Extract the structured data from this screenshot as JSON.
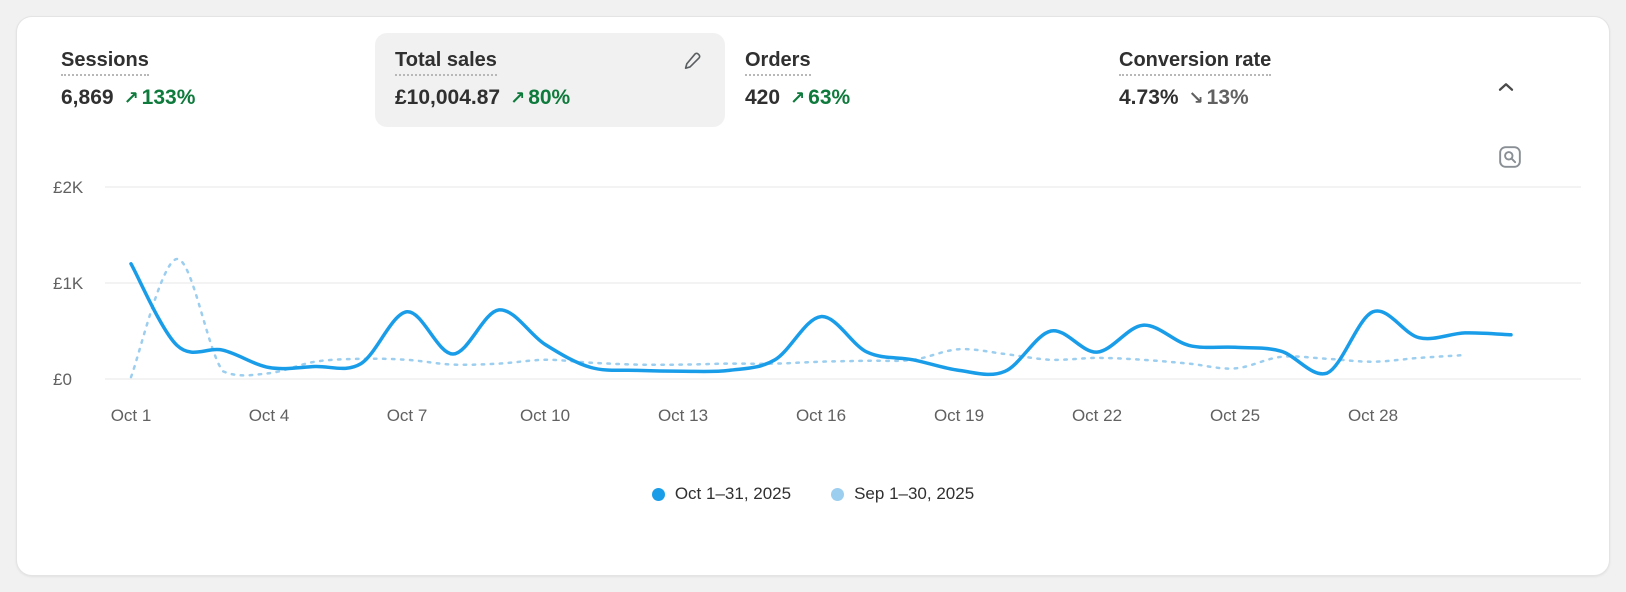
{
  "card": {
    "metrics": [
      {
        "id": "sessions",
        "label": "Sessions",
        "value": "6,869",
        "arrow": "↗",
        "delta": "133%",
        "delta_direction": "up",
        "delta_color": "green",
        "selected": false
      },
      {
        "id": "total-sales",
        "label": "Total sales",
        "value": "£10,004.87",
        "arrow": "↗",
        "delta": "80%",
        "delta_direction": "up",
        "delta_color": "green",
        "selected": true
      },
      {
        "id": "orders",
        "label": "Orders",
        "value": "420",
        "arrow": "↗",
        "delta": "63%",
        "delta_direction": "up",
        "delta_color": "green",
        "selected": false
      },
      {
        "id": "conversion-rate",
        "label": "Conversion rate",
        "value": "4.73%",
        "arrow": "↘",
        "delta": "13%",
        "delta_direction": "down",
        "delta_color": "gray",
        "selected": false
      }
    ],
    "icons": {
      "collapse": "chevron-up",
      "edit": "pencil",
      "inspect": "magnify-chart"
    }
  },
  "colors": {
    "primary_line": "#1a9de9",
    "comparison_line": "#9cceef",
    "positive_delta": "#0e7a3c",
    "neutral_delta": "#616161",
    "text_primary": "#303030",
    "axis_text": "#616161",
    "selected_tile_bg": "#f1f1f1",
    "card_bg": "#ffffff",
    "page_bg": "#f1f1f1"
  },
  "chart_data": {
    "type": "line",
    "title": "Total sales",
    "xlabel": "",
    "ylabel": "",
    "currency": "£",
    "ylim": [
      0,
      2000
    ],
    "grid": true,
    "legend_position": "bottom",
    "yticks": [
      {
        "value": 0,
        "label": "£0"
      },
      {
        "value": 1000,
        "label": "£1K"
      },
      {
        "value": 2000,
        "label": "£2K"
      }
    ],
    "xticks": [
      {
        "day": 1,
        "label": "Oct 1"
      },
      {
        "day": 4,
        "label": "Oct 4"
      },
      {
        "day": 7,
        "label": "Oct 7"
      },
      {
        "day": 10,
        "label": "Oct 10"
      },
      {
        "day": 13,
        "label": "Oct 13"
      },
      {
        "day": 16,
        "label": "Oct 16"
      },
      {
        "day": 19,
        "label": "Oct 19"
      },
      {
        "day": 22,
        "label": "Oct 22"
      },
      {
        "day": 25,
        "label": "Oct 25"
      },
      {
        "day": 28,
        "label": "Oct 28"
      }
    ],
    "x_days": 31,
    "series": [
      {
        "name": "Oct 1–31, 2025",
        "style": "solid",
        "color": "#1a9de9",
        "values": [
          1200,
          350,
          300,
          120,
          130,
          160,
          700,
          260,
          720,
          360,
          120,
          90,
          80,
          90,
          200,
          650,
          280,
          200,
          90,
          80,
          500,
          280,
          560,
          350,
          330,
          290,
          60,
          700,
          430,
          480,
          460
        ]
      },
      {
        "name": "Sep 1–30, 2025",
        "style": "dashed",
        "color": "#9cceef",
        "values": [
          20,
          1250,
          80,
          60,
          180,
          210,
          200,
          150,
          160,
          200,
          170,
          150,
          150,
          160,
          160,
          180,
          190,
          200,
          310,
          260,
          200,
          220,
          200,
          160,
          110,
          230,
          210,
          180,
          220,
          250
        ]
      }
    ]
  }
}
